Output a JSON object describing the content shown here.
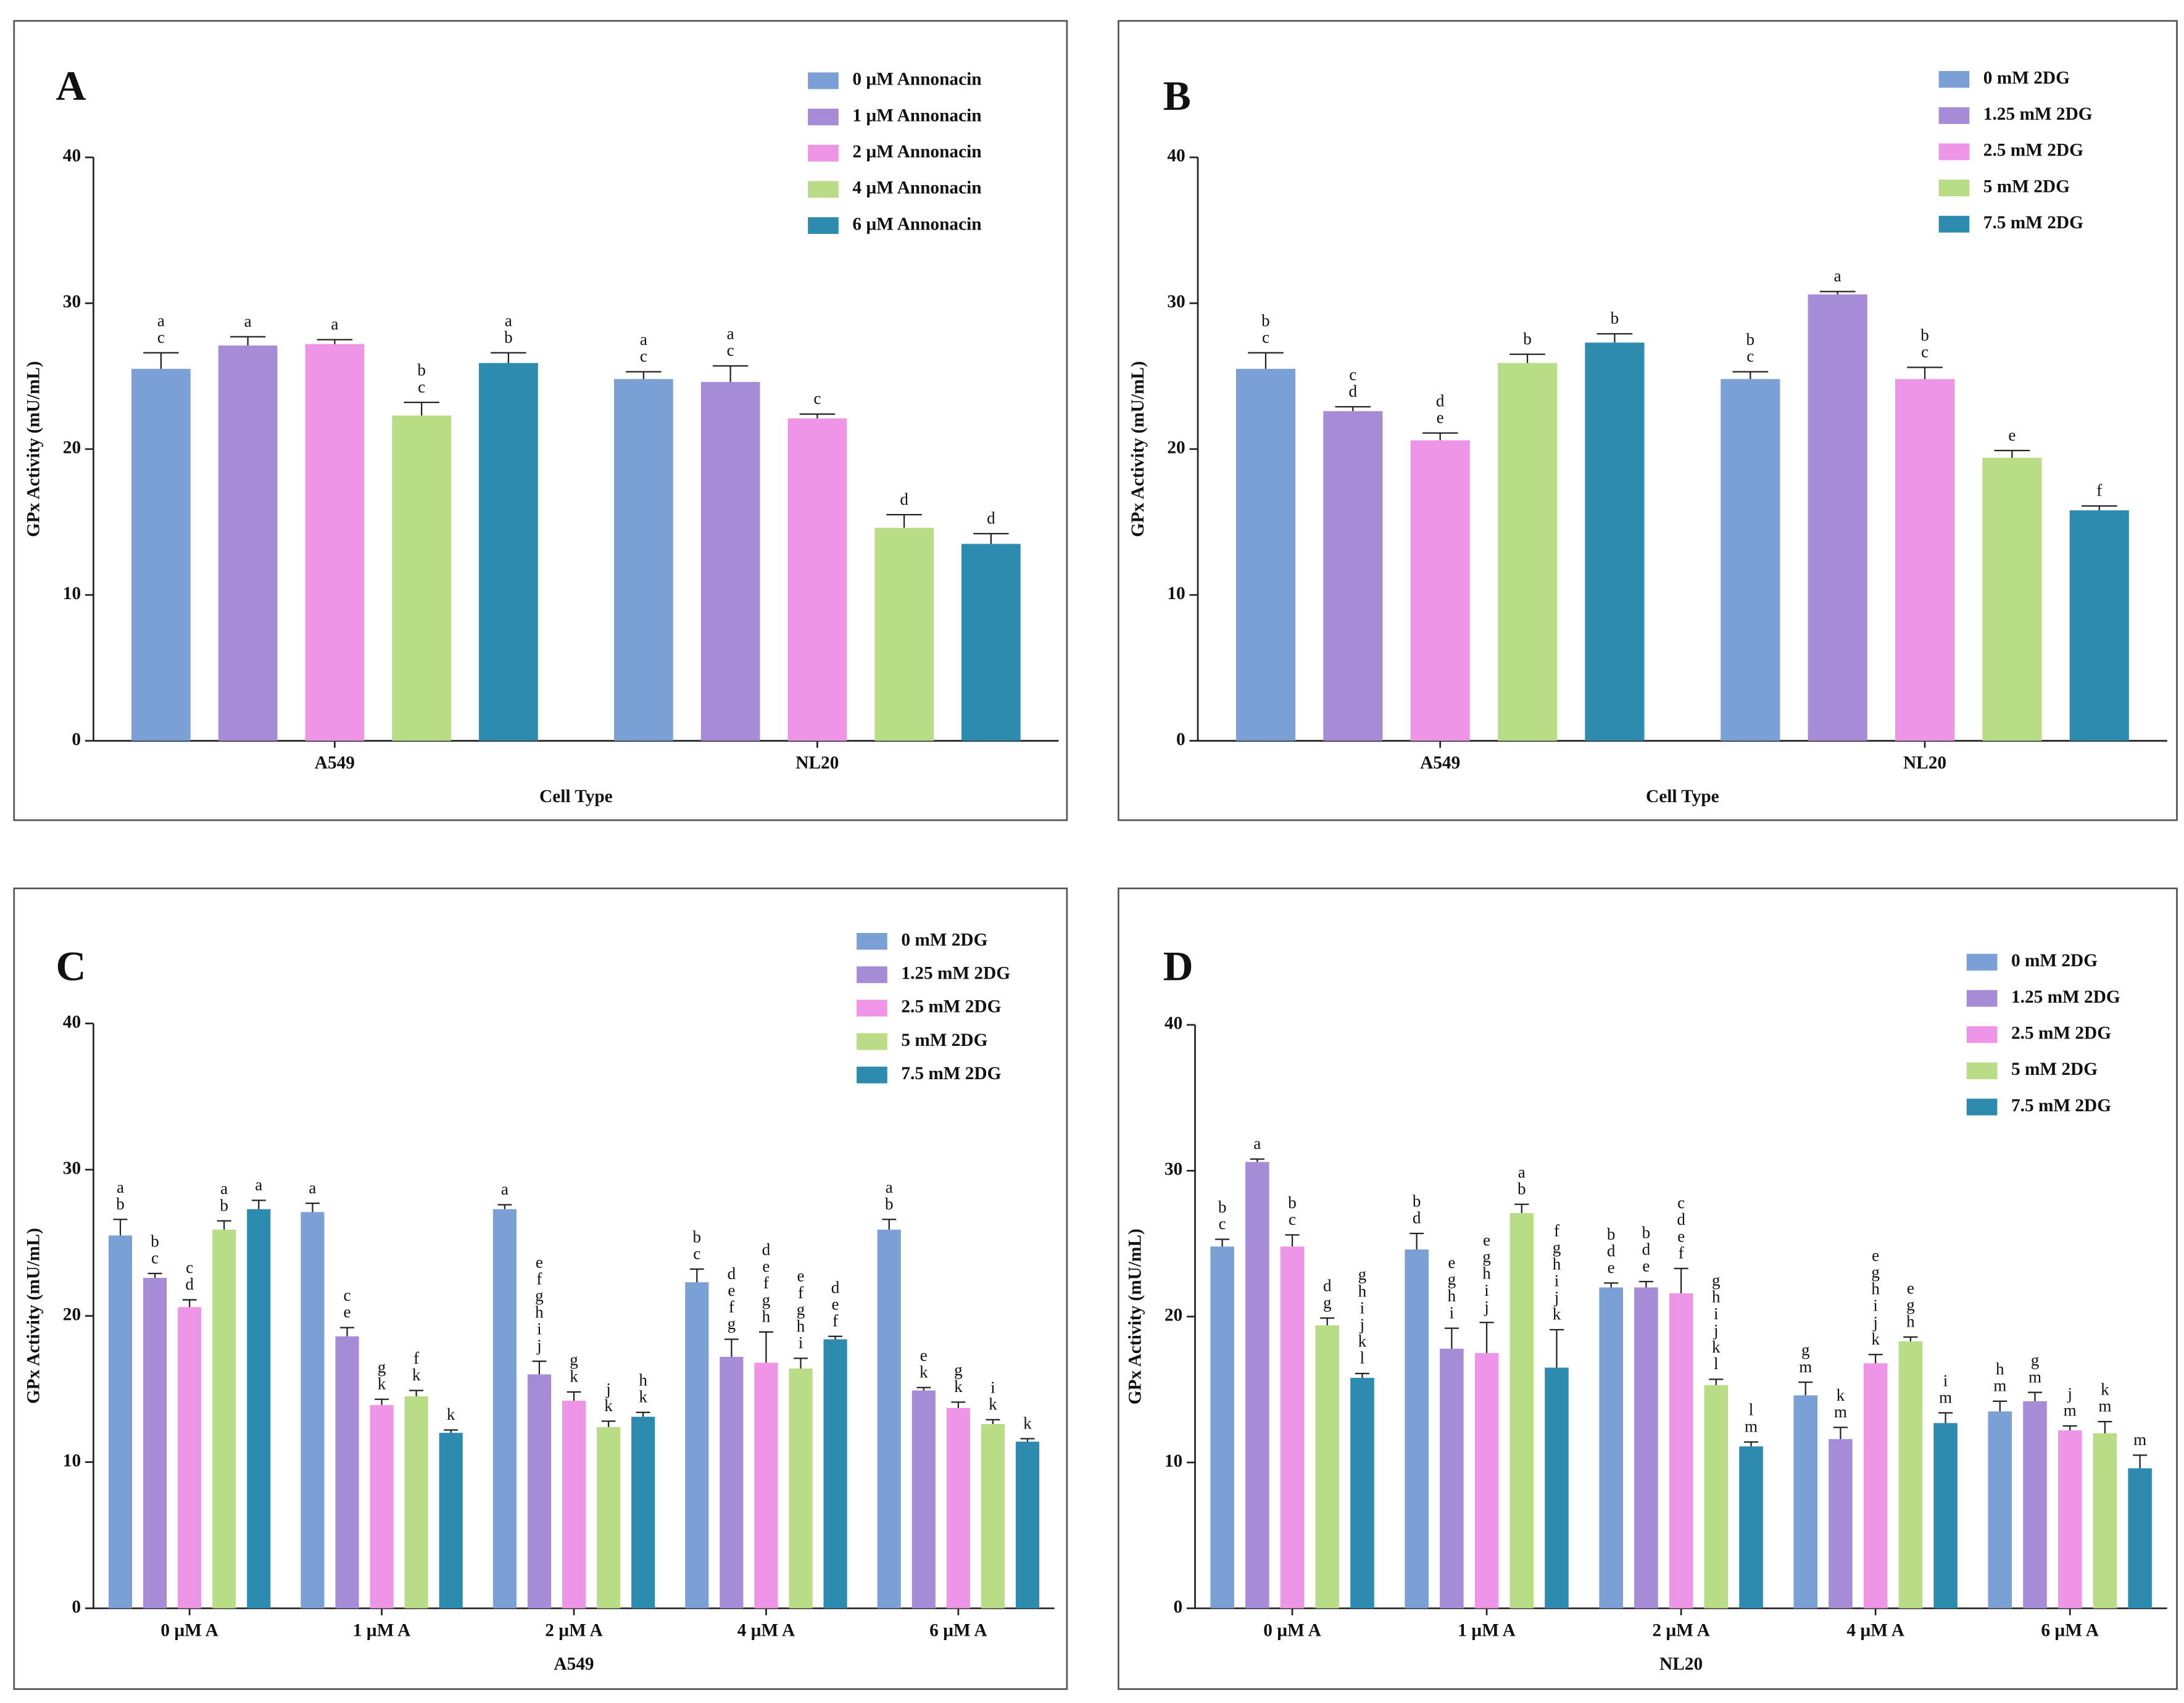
{
  "chart_data": [
    {
      "type": "bar",
      "title": "A",
      "xlabel": "Cell Type",
      "ylabel": "GPx Activity (mU/mL)",
      "categories": [
        "A549",
        "NL20"
      ],
      "ylim": [
        0,
        40
      ],
      "yticks": [
        0,
        10,
        20,
        30,
        40
      ],
      "series": [
        {
          "name": "0 µM Annonacin",
          "color": "#7ba0d6",
          "values": [
            25.5,
            24.8
          ],
          "errors": [
            1.1,
            0.5
          ],
          "letters": [
            [
              "a",
              "c"
            ],
            [
              "a",
              "c"
            ]
          ]
        },
        {
          "name": "1 µM Annonacin",
          "color": "#a68bd6",
          "values": [
            27.1,
            24.6
          ],
          "errors": [
            0.6,
            1.1
          ],
          "letters": [
            [
              "a"
            ],
            [
              "a",
              "c"
            ]
          ]
        },
        {
          "name": "2 µM Annonacin",
          "color": "#ee95e8",
          "values": [
            27.2,
            22.1
          ],
          "errors": [
            0.3,
            0.3
          ],
          "letters": [
            [
              "a"
            ],
            [
              "c"
            ]
          ]
        },
        {
          "name": "4 µM Annonacin",
          "color": "#b9dc86",
          "values": [
            22.3,
            14.6
          ],
          "errors": [
            0.9,
            0.9
          ],
          "letters": [
            [
              "b",
              "c"
            ],
            [
              "d"
            ]
          ]
        },
        {
          "name": "6 µM Annonacin",
          "color": "#2e8bb0",
          "values": [
            25.9,
            13.5
          ],
          "errors": [
            0.7,
            0.7
          ],
          "letters": [
            [
              "a",
              "b"
            ],
            [
              "d"
            ]
          ]
        }
      ]
    },
    {
      "type": "bar",
      "title": "B",
      "xlabel": "Cell Type",
      "ylabel": "GPx Activity (mU/mL)",
      "categories": [
        "A549",
        "NL20"
      ],
      "ylim": [
        0,
        40
      ],
      "yticks": [
        0,
        10,
        20,
        30,
        40
      ],
      "series": [
        {
          "name": "0 mM 2DG",
          "color": "#7ba0d6",
          "values": [
            25.5,
            24.8
          ],
          "errors": [
            1.1,
            0.5
          ],
          "letters": [
            [
              "b",
              "c"
            ],
            [
              "b",
              "c"
            ]
          ]
        },
        {
          "name": "1.25 mM 2DG",
          "color": "#a68bd6",
          "values": [
            22.6,
            30.6
          ],
          "errors": [
            0.3,
            0.2
          ],
          "letters": [
            [
              "c",
              "d"
            ],
            [
              "a"
            ]
          ]
        },
        {
          "name": "2.5 mM 2DG",
          "color": "#ee95e8",
          "values": [
            20.6,
            24.8
          ],
          "errors": [
            0.5,
            0.8
          ],
          "letters": [
            [
              "d",
              "e"
            ],
            [
              "b",
              "c"
            ]
          ]
        },
        {
          "name": "5 mM 2DG",
          "color": "#b9dc86",
          "values": [
            25.9,
            19.4
          ],
          "errors": [
            0.6,
            0.5
          ],
          "letters": [
            [
              "b"
            ],
            [
              "e"
            ]
          ]
        },
        {
          "name": "7.5 mM 2DG",
          "color": "#2e8bb0",
          "values": [
            27.3,
            15.8
          ],
          "errors": [
            0.6,
            0.3
          ],
          "letters": [
            [
              "b"
            ],
            [
              "f"
            ]
          ]
        }
      ]
    },
    {
      "type": "bar",
      "title": "C",
      "xlabel": "A549",
      "ylabel": "GPx Activity (mU/mL)",
      "categories": [
        "0 µM A",
        "1 µM A",
        "2 µM A",
        "4 µM A",
        "6 µM A"
      ],
      "ylim": [
        0,
        40
      ],
      "yticks": [
        0,
        10,
        20,
        30,
        40
      ],
      "series": [
        {
          "name": "0 mM 2DG",
          "color": "#7ba0d6",
          "values": [
            25.5,
            27.1,
            27.3,
            22.3,
            25.9
          ],
          "errors": [
            1.1,
            0.6,
            0.3,
            0.9,
            0.7
          ],
          "letters": [
            [
              "a",
              "b"
            ],
            [
              "a"
            ],
            [
              "a"
            ],
            [
              "b",
              "c"
            ],
            [
              "a",
              "b"
            ]
          ]
        },
        {
          "name": "1.25 mM 2DG",
          "color": "#a68bd6",
          "values": [
            22.6,
            18.6,
            16.0,
            17.2,
            14.9
          ],
          "errors": [
            0.3,
            0.6,
            0.9,
            1.2,
            0.2
          ],
          "letters": [
            [
              "b",
              "c"
            ],
            [
              "c",
              "e"
            ],
            [
              "e",
              "f",
              "g",
              "h",
              "i",
              "j"
            ],
            [
              "d",
              "e",
              "f",
              "g"
            ],
            [
              "e",
              "k"
            ]
          ]
        },
        {
          "name": "2.5 mM 2DG",
          "color": "#ee95e8",
          "values": [
            20.6,
            13.9,
            14.2,
            16.8,
            13.7
          ],
          "errors": [
            0.5,
            0.4,
            0.6,
            2.1,
            0.4
          ],
          "letters": [
            [
              "c",
              "d"
            ],
            [
              "g",
              "k"
            ],
            [
              "g",
              "k"
            ],
            [
              "d",
              "e",
              "f",
              "g",
              "h"
            ],
            [
              "g",
              "k"
            ]
          ]
        },
        {
          "name": "5 mM 2DG",
          "color": "#b9dc86",
          "values": [
            25.9,
            14.5,
            12.4,
            16.4,
            12.6
          ],
          "errors": [
            0.6,
            0.4,
            0.4,
            0.7,
            0.3
          ],
          "letters": [
            [
              "a",
              "b"
            ],
            [
              "f",
              "k"
            ],
            [
              "j",
              "k"
            ],
            [
              "e",
              "f",
              "g",
              "h",
              "i"
            ],
            [
              "i",
              "k"
            ]
          ]
        },
        {
          "name": "7.5 mM 2DG",
          "color": "#2e8bb0",
          "values": [
            27.3,
            12.0,
            13.1,
            18.4,
            11.4
          ],
          "errors": [
            0.6,
            0.2,
            0.3,
            0.2,
            0.2
          ],
          "letters": [
            [
              "a"
            ],
            [
              "k"
            ],
            [
              "h",
              "k"
            ],
            [
              "d",
              "e",
              "f"
            ],
            [
              "k"
            ]
          ]
        }
      ]
    },
    {
      "type": "bar",
      "title": "D",
      "xlabel": "NL20",
      "ylabel": "GPx Activity (mU/mL)",
      "categories": [
        "0 µM A",
        "1 µM A",
        "2 µM A",
        "4 µM A",
        "6 µM A"
      ],
      "ylim": [
        0,
        40
      ],
      "yticks": [
        0,
        10,
        20,
        30,
        40
      ],
      "series": [
        {
          "name": "0 mM 2DG",
          "color": "#7ba0d6",
          "values": [
            24.8,
            24.6,
            22.0,
            14.6,
            13.5
          ],
          "errors": [
            0.5,
            1.1,
            0.3,
            0.9,
            0.7
          ],
          "letters": [
            [
              "b",
              "c"
            ],
            [
              "b",
              "d"
            ],
            [
              "b",
              "d",
              "e"
            ],
            [
              "g",
              "m"
            ],
            [
              "h",
              "m"
            ]
          ]
        },
        {
          "name": "1.25 mM 2DG",
          "color": "#a68bd6",
          "values": [
            30.6,
            17.8,
            22.0,
            11.6,
            14.2
          ],
          "errors": [
            0.2,
            1.4,
            0.4,
            0.8,
            0.6
          ],
          "letters": [
            [
              "a"
            ],
            [
              "e",
              "g",
              "h",
              "i"
            ],
            [
              "b",
              "d",
              "e"
            ],
            [
              "k",
              "m"
            ],
            [
              "g",
              "m"
            ]
          ]
        },
        {
          "name": "2.5 mM 2DG",
          "color": "#ee95e8",
          "values": [
            24.8,
            17.5,
            21.6,
            16.8,
            12.2
          ],
          "errors": [
            0.8,
            2.1,
            1.7,
            0.6,
            0.3
          ],
          "letters": [
            [
              "b",
              "c"
            ],
            [
              "e",
              "g",
              "h",
              "i",
              "j"
            ],
            [
              "c",
              "d",
              "e",
              "f"
            ],
            [
              "e",
              "g",
              "h",
              "i",
              "j",
              "k"
            ],
            [
              "j",
              "m"
            ]
          ]
        },
        {
          "name": "5 mM 2DG",
          "color": "#b9dc86",
          "values": [
            19.4,
            27.1,
            15.3,
            18.3,
            12.0
          ],
          "errors": [
            0.5,
            0.6,
            0.4,
            0.3,
            0.8
          ],
          "letters": [
            [
              "d",
              "g"
            ],
            [
              "a",
              "b"
            ],
            [
              "g",
              "h",
              "i",
              "j",
              "k",
              "l"
            ],
            [
              "e",
              "g",
              "h"
            ],
            [
              "k",
              "m"
            ]
          ]
        },
        {
          "name": "7.5 mM 2DG",
          "color": "#2e8bb0",
          "values": [
            15.8,
            16.5,
            11.1,
            12.7,
            9.6
          ],
          "errors": [
            0.3,
            2.6,
            0.3,
            0.7,
            0.9
          ],
          "letters": [
            [
              "g",
              "h",
              "i",
              "j",
              "k",
              "l"
            ],
            [
              "f",
              "g",
              "h",
              "i",
              "j",
              "k"
            ],
            [
              "l",
              "m"
            ],
            [
              "i",
              "m"
            ],
            [
              "m"
            ]
          ]
        }
      ]
    }
  ]
}
